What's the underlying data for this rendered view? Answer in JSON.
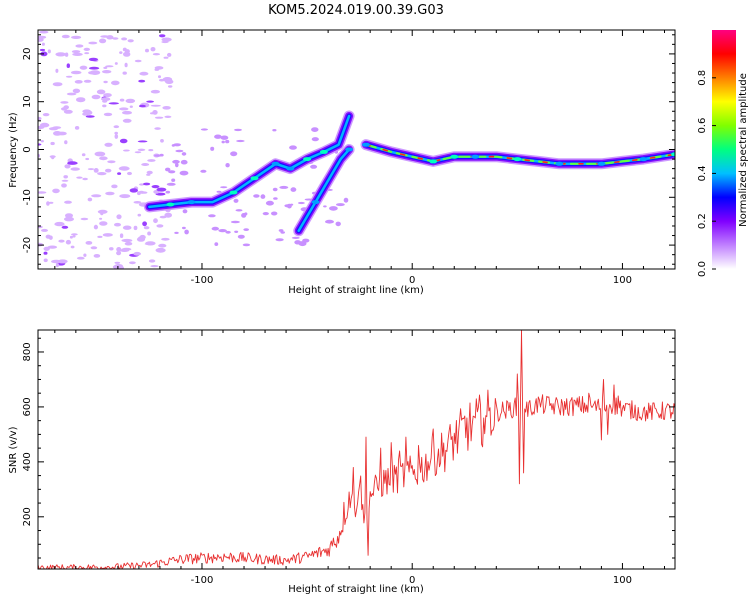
{
  "title": "KOM5.2024.019.00.39.G03",
  "chart_data": [
    {
      "type": "heatmap",
      "xlabel": "Height of straight line (km)",
      "ylabel": "Frequency (Hz)",
      "xlim": [
        -178,
        125
      ],
      "ylim": [
        -25,
        25
      ],
      "xticks": [
        -100,
        0,
        100
      ],
      "xtick_labels": [
        "-100",
        "0",
        "100"
      ],
      "yticks": [
        -20,
        -10,
        0,
        10,
        20
      ],
      "ytick_labels": [
        "-20",
        "-10",
        "0",
        "10",
        "20"
      ],
      "colorbar": {
        "label": "Normalized spectral amplitude",
        "range": [
          0,
          1
        ],
        "ticks": [
          0.0,
          0.2,
          0.4,
          0.6,
          0.8
        ],
        "tick_labels": [
          "0.0",
          "0.2",
          "0.4",
          "0.6",
          "0.8"
        ],
        "colormap": [
          "#ffffff",
          "#c080ff",
          "#8000ff",
          "#0000ff",
          "#00c0ff",
          "#00ff80",
          "#80ff00",
          "#ffff00",
          "#ff8000",
          "#ff0000",
          "#ff0080"
        ]
      },
      "ridges": [
        {
          "name": "",
          "x": [
            -125,
            -115,
            -105,
            -95,
            -85,
            -75,
            -65,
            -58,
            -50,
            -42,
            -35,
            -30
          ],
          "y": [
            -12,
            -11.5,
            -11,
            -11,
            -9,
            -6,
            -3,
            -4,
            -2,
            -0.5,
            1,
            7
          ]
        },
        {
          "name": "",
          "x": [
            -54,
            -50,
            -46,
            -42,
            -38,
            -34,
            -30
          ],
          "y": [
            -17,
            -14,
            -11,
            -8,
            -5,
            -2,
            0
          ]
        },
        {
          "name": "",
          "x": [
            -22,
            -10,
            0,
            10,
            20,
            30,
            40,
            50,
            60,
            70,
            80,
            90,
            100,
            110,
            125
          ],
          "y": [
            1,
            -0.5,
            -1.5,
            -2.5,
            -1.5,
            -1.5,
            -1.5,
            -2,
            -2.5,
            -3,
            -3,
            -3,
            -2.5,
            -2,
            -1
          ]
        }
      ],
      "noise_region": {
        "x": [
          -178,
          -125
        ],
        "y": [
          -25,
          25
        ]
      }
    },
    {
      "type": "line",
      "xlabel": "Height of straight line (km)",
      "ylabel": "SNR (v/v)",
      "xlim": [
        -178,
        125
      ],
      "ylim": [
        10,
        880
      ],
      "xticks": [
        -100,
        0,
        100
      ],
      "xtick_labels": [
        "-100",
        "0",
        "100"
      ],
      "yticks": [
        200,
        400,
        600,
        800
      ],
      "ytick_labels": [
        "200",
        "400",
        "600",
        "800"
      ],
      "color": "#e83030",
      "series": [
        {
          "name": "",
          "x": [
            -178,
            -160,
            -140,
            -125,
            -118,
            -110,
            -100,
            -90,
            -80,
            -70,
            -60,
            -50,
            -40,
            -35,
            -30,
            -27,
            -25,
            -23,
            -20,
            -15,
            -10,
            -5,
            0,
            5,
            10,
            15,
            20,
            25,
            30,
            35,
            40,
            45,
            50,
            52,
            55,
            60,
            70,
            80,
            90,
            95,
            100,
            110,
            120,
            125
          ],
          "y": [
            15,
            15,
            18,
            25,
            35,
            45,
            50,
            55,
            50,
            45,
            42,
            55,
            80,
            130,
            280,
            230,
            350,
            180,
            280,
            320,
            340,
            350,
            360,
            380,
            420,
            440,
            480,
            520,
            540,
            560,
            580,
            590,
            600,
            620,
            590,
            610,
            600,
            605,
            600,
            610,
            595,
            580,
            585,
            585
          ],
          "spikes": [
            {
              "x": -28,
              "y": 380
            },
            {
              "x": -27,
              "y": 200
            },
            {
              "x": -22,
              "y": 490
            },
            {
              "x": -21,
              "y": 60
            },
            {
              "x": -15,
              "y": 450
            },
            {
              "x": -10,
              "y": 470
            },
            {
              "x": -6,
              "y": 440
            },
            {
              "x": -3,
              "y": 490
            },
            {
              "x": 3,
              "y": 460
            },
            {
              "x": 10,
              "y": 520
            },
            {
              "x": 30,
              "y": 560
            },
            {
              "x": 34,
              "y": 560
            },
            {
              "x": 50,
              "y": 720
            },
            {
              "x": 51,
              "y": 320
            },
            {
              "x": 52,
              "y": 880
            },
            {
              "x": 53,
              "y": 360
            },
            {
              "x": 84,
              "y": 650
            },
            {
              "x": 90,
              "y": 480
            },
            {
              "x": 91,
              "y": 700
            },
            {
              "x": 93,
              "y": 500
            },
            {
              "x": 96,
              "y": 680
            },
            {
              "x": 98,
              "y": 640
            }
          ]
        }
      ]
    }
  ]
}
